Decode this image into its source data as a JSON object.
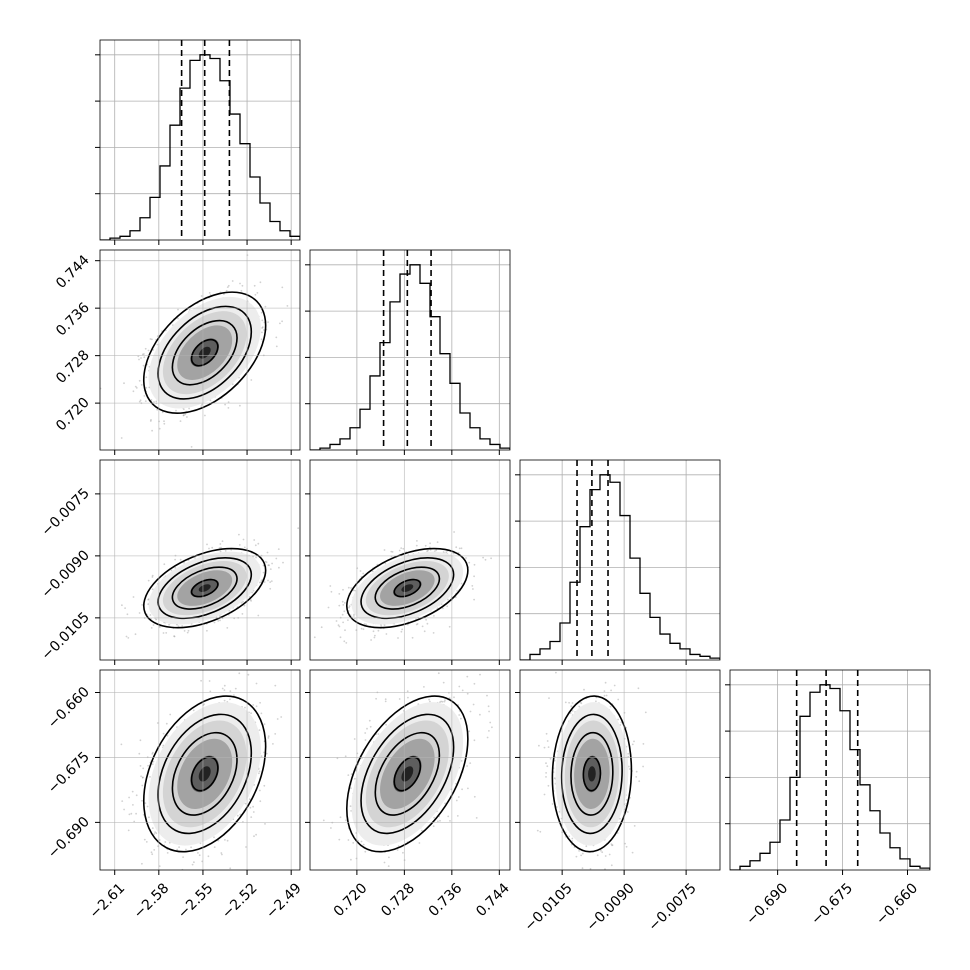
{
  "chart_data": {
    "type": "corner",
    "parameters": [
      {
        "range": [
          -2.62,
          -2.484
        ],
        "ticks": [
          -2.61,
          -2.58,
          -2.55,
          -2.52,
          -2.49
        ],
        "tick_labels": [
          "−2.61",
          "−2.58",
          "−2.55",
          "−2.52",
          "−2.49"
        ],
        "quantiles": [
          -2.5645,
          -2.5488,
          -2.532
        ],
        "hist": [
          0.0,
          0.01,
          0.02,
          0.05,
          0.12,
          0.23,
          0.4,
          0.62,
          0.82,
          0.97,
          1.0,
          0.98,
          0.86,
          0.68,
          0.52,
          0.34,
          0.2,
          0.1,
          0.05,
          0.02
        ]
      },
      {
        "range": [
          0.7121,
          0.7458
        ],
        "ticks": [
          0.72,
          0.728,
          0.736,
          0.744
        ],
        "tick_labels": [
          "0.720",
          "0.728",
          "0.736",
          "0.744"
        ],
        "quantiles": [
          0.7245,
          0.7285,
          0.7325
        ],
        "hist": [
          0.0,
          0.01,
          0.03,
          0.06,
          0.12,
          0.22,
          0.4,
          0.58,
          0.8,
          0.95,
          1.0,
          0.9,
          0.72,
          0.52,
          0.36,
          0.2,
          0.12,
          0.06,
          0.03,
          0.01
        ]
      },
      {
        "range": [
          -0.01152,
          -0.00668
        ],
        "ticks": [
          -0.0105,
          -0.009,
          -0.0075
        ],
        "tick_labels": [
          "−0.0105",
          "−0.0090",
          "−0.0075"
        ],
        "quantiles": [
          -0.01014,
          -0.00978,
          -0.00939
        ],
        "hist": [
          0.0,
          0.03,
          0.06,
          0.1,
          0.2,
          0.42,
          0.72,
          0.92,
          1.0,
          0.96,
          0.78,
          0.55,
          0.36,
          0.23,
          0.14,
          0.09,
          0.06,
          0.03,
          0.02,
          0.01
        ]
      },
      {
        "range": [
          -0.701,
          -0.6548
        ],
        "ticks": [
          -0.69,
          -0.675,
          -0.66
        ],
        "tick_labels": [
          "−0.690",
          "−0.675",
          "−0.660"
        ],
        "quantiles": [
          -0.6856,
          -0.6788,
          -0.6715
        ],
        "hist": [
          0.0,
          0.02,
          0.05,
          0.09,
          0.15,
          0.27,
          0.5,
          0.83,
          0.96,
          1.0,
          0.98,
          0.86,
          0.65,
          0.46,
          0.32,
          0.2,
          0.12,
          0.06,
          0.02,
          0.01
        ]
      }
    ],
    "hist_bins": 20,
    "histogram_style": "step",
    "quantile_line_style": "dashed",
    "grid": true,
    "contour_levels": 4,
    "scatter_color": "#9a9a9a",
    "contour_color": "#000000",
    "pairs": [
      {
        "x_param": 0,
        "y_param": 1,
        "corr": 0.45
      },
      {
        "x_param": 0,
        "y_param": 2,
        "corr": 0.45
      },
      {
        "x_param": 1,
        "y_param": 2,
        "corr": 0.45
      },
      {
        "x_param": 0,
        "y_param": 3,
        "corr": 0.35
      },
      {
        "x_param": 1,
        "y_param": 3,
        "corr": 0.45
      },
      {
        "x_param": 2,
        "y_param": 3,
        "corr": 0.05
      }
    ]
  }
}
